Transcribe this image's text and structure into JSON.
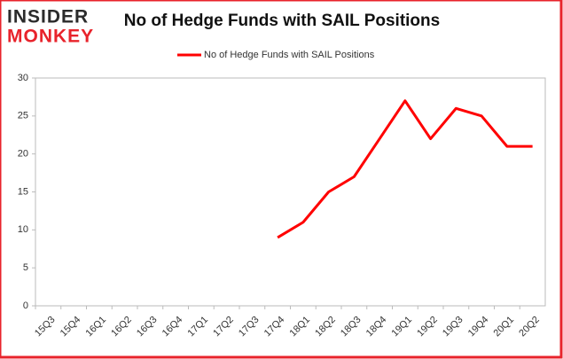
{
  "logo": {
    "line1": "INSIDER",
    "line2": "MONKEY"
  },
  "chart_data": {
    "type": "line",
    "title": "No of Hedge Funds with SAIL Positions",
    "categories": [
      "15Q3",
      "15Q4",
      "16Q1",
      "16Q2",
      "16Q3",
      "16Q4",
      "17Q1",
      "17Q2",
      "17Q3",
      "17Q4",
      "18Q1",
      "18Q2",
      "18Q3",
      "18Q4",
      "19Q1",
      "19Q2",
      "19Q3",
      "19Q4",
      "20Q1",
      "20Q2"
    ],
    "series": [
      {
        "name": "No of Hedge Funds with SAIL Positions",
        "color": "#ff0000",
        "values": [
          null,
          null,
          null,
          null,
          null,
          null,
          null,
          null,
          null,
          9,
          11,
          15,
          17,
          22,
          27,
          22,
          26,
          25,
          21,
          21
        ]
      }
    ],
    "ylim": [
      0,
      30
    ],
    "yticks": [
      0,
      5,
      10,
      15,
      20,
      25,
      30
    ],
    "grid": false,
    "legend": "top"
  }
}
